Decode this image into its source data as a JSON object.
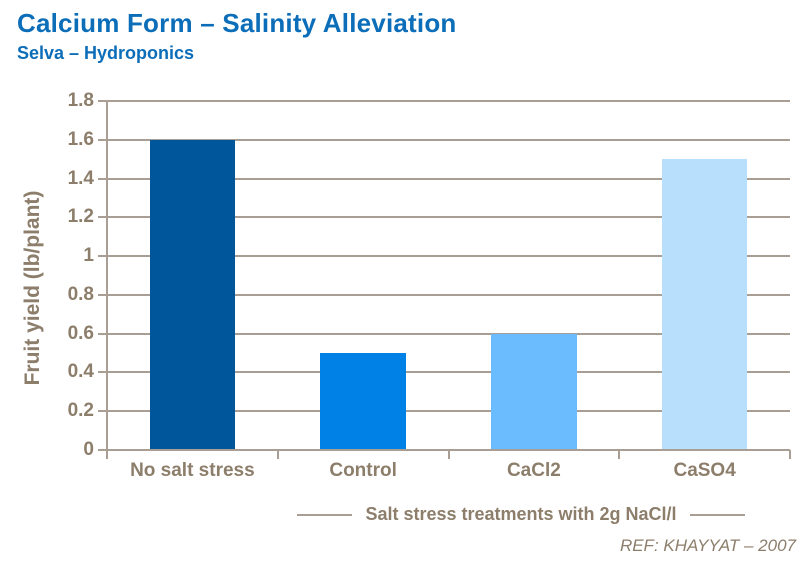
{
  "header": {
    "title": "Calcium Form – Salinity Alleviation",
    "subtitle": "Selva – Hydroponics"
  },
  "chart_data": {
    "type": "bar",
    "title": "Calcium Form – Salinity Alleviation",
    "subtitle": "Selva – Hydroponics",
    "categories": [
      "No salt stress",
      "Control",
      "CaCl2",
      "CaSO4"
    ],
    "values": [
      1.6,
      0.5,
      0.6,
      1.5
    ],
    "bar_colors": [
      "#00569B",
      "#0081E6",
      "#6BBCFF",
      "#B8DFFC"
    ],
    "xlabel": "Salt stress treatments with 2g NaCl/l",
    "ylabel": "Fruit yield (lb/plant)",
    "ylim": [
      0,
      1.8
    ],
    "ytick_step": 0.2,
    "ytick_labels": [
      "0",
      "0.2",
      "0.4",
      "0.6",
      "0.8",
      "1",
      "1.2",
      "1.4",
      "1.6",
      "1.8"
    ],
    "grid": "horizontal gridlines on",
    "legend": "none"
  },
  "footer": {
    "reference": "REF: KHAYYAT – 2007"
  },
  "colors": {
    "title_text": "#0C6DB8",
    "axis_text": "#8C7E6B",
    "grid_line": "#A89E93",
    "background": "#FFFFFF"
  }
}
